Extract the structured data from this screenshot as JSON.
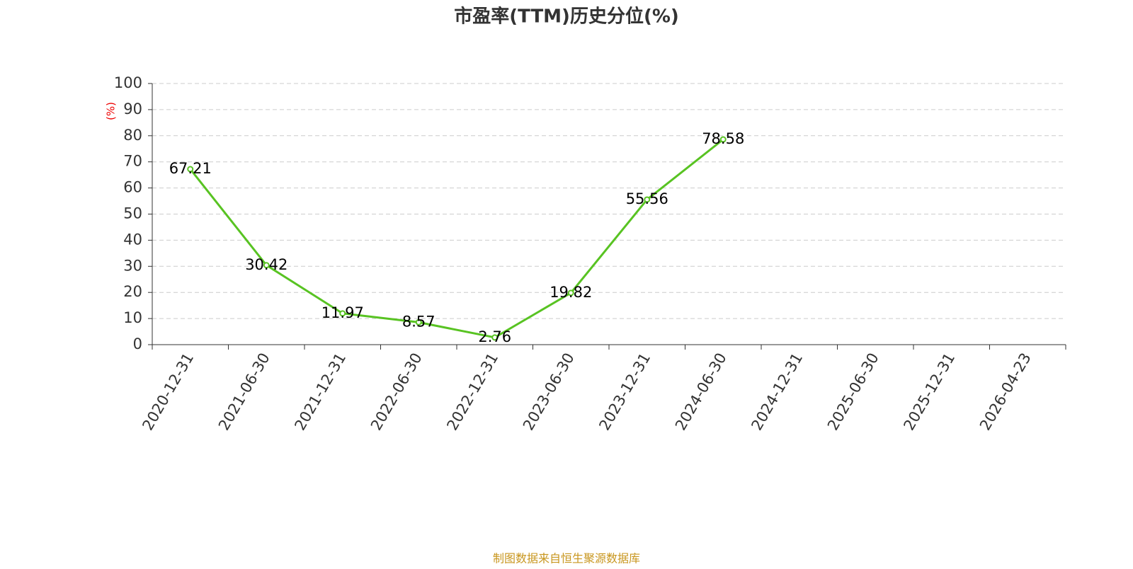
{
  "chart_data": {
    "type": "line",
    "title": "市盈率(TTM)历史分位(%)",
    "y_label": "(%)",
    "source": "制图数据来自恒生聚源数据库",
    "categories": [
      "2020-12-31",
      "2021-06-30",
      "2021-12-31",
      "2022-06-30",
      "2022-12-31",
      "2023-06-30",
      "2023-12-31",
      "2024-06-30",
      "2024-12-31",
      "2025-06-30",
      "2025-12-31",
      "2026-04-23"
    ],
    "series": [
      {
        "name": "市盈率(TTM)历史分位",
        "color": "#58c322",
        "values": [
          67.21,
          30.42,
          11.97,
          8.57,
          2.76,
          19.82,
          55.56,
          78.58,
          null,
          null,
          null,
          null
        ]
      }
    ],
    "ylim": [
      0,
      100
    ],
    "yticks": [
      0,
      10,
      20,
      30,
      40,
      50,
      60,
      70,
      80,
      90,
      100
    ],
    "grid": true
  }
}
